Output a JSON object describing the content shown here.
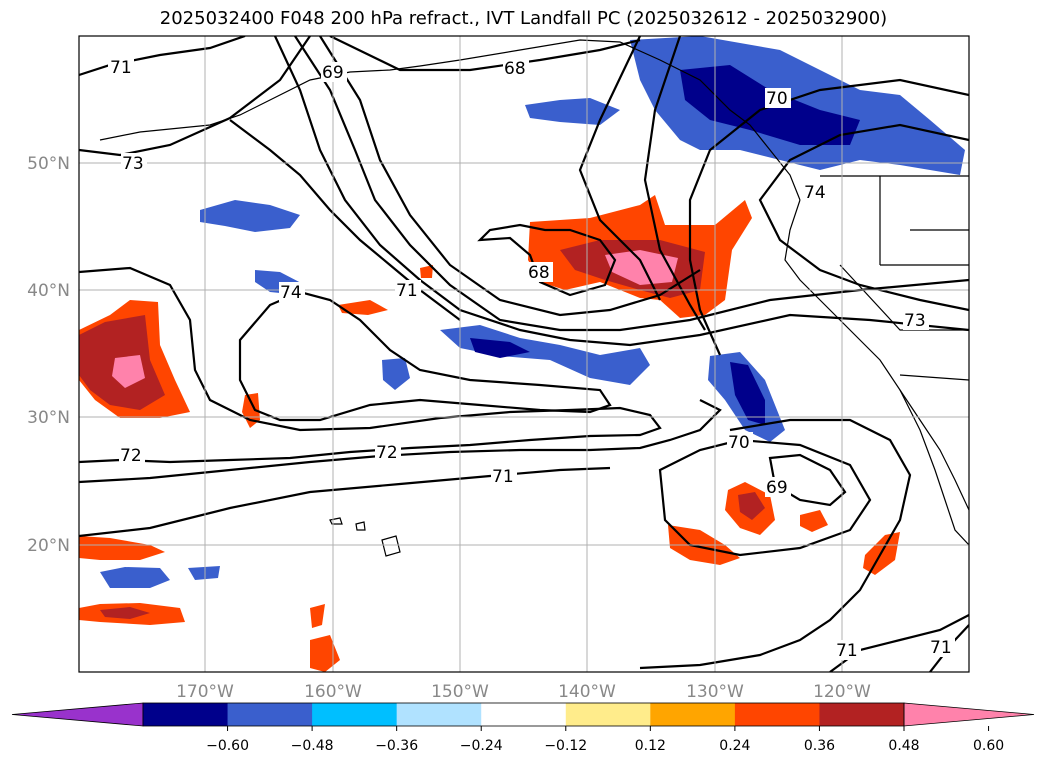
{
  "title": "2025032400 F048 200 hPa refract., IVT Landfall PC (2025032612 - 2025032900)",
  "map": {
    "lon_labels": [
      "170°W",
      "160°W",
      "150°W",
      "140°W",
      "130°W",
      "120°W"
    ],
    "lat_labels": [
      "50°N",
      "40°N",
      "30°N",
      "20°N"
    ],
    "contour_labels": [
      "71",
      "69",
      "68",
      "70",
      "73",
      "74",
      "71",
      "74",
      "68",
      "73",
      "72",
      "72",
      "71",
      "70",
      "69",
      "71",
      "71"
    ],
    "line_color": "#000000",
    "grid_color": "#b0b0b0"
  },
  "colorbar": {
    "ticks": [
      "−0.60",
      "−0.48",
      "−0.36",
      "−0.24",
      "−0.12",
      "0.12",
      "0.24",
      "0.36",
      "0.48",
      "0.60"
    ],
    "colors": [
      "#9932cc",
      "#00008b",
      "#3a5fcd",
      "#00bfff",
      "#b0e2ff",
      "#ffffff",
      "#ffec8b",
      "#ffa500",
      "#ff4500",
      "#b22222",
      "#ff82ab"
    ]
  }
}
